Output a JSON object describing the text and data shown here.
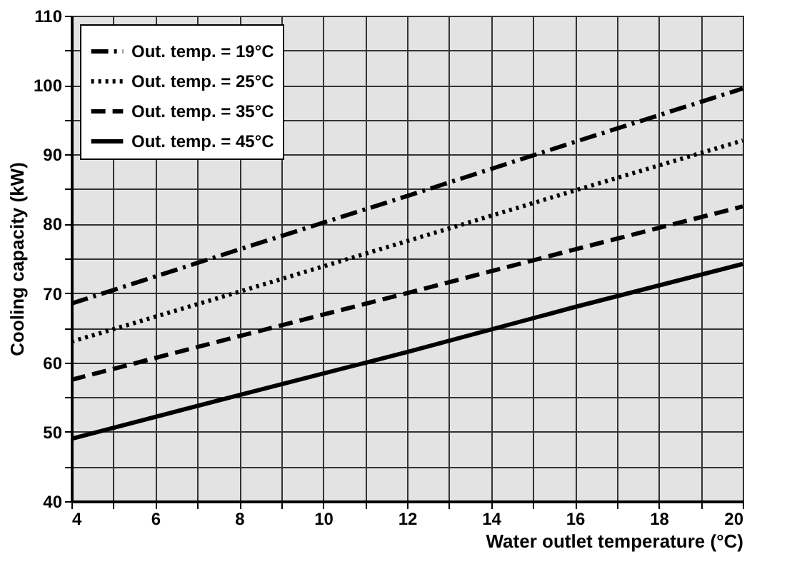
{
  "chart_data": {
    "type": "line",
    "xlabel": "Water outlet temperature (°C)",
    "ylabel": "Cooling capacity (kW)",
    "x": [
      4,
      8,
      12,
      16,
      20
    ],
    "series": [
      {
        "name": "Out. temp. = 19°C",
        "color": "#000000",
        "line_style": "dashdot",
        "values": [
          68.5,
          76.3,
          84,
          91.8,
          99.5
        ]
      },
      {
        "name": "Out. temp. = 25°C",
        "color": "#000000",
        "line_style": "dotted",
        "values": [
          63,
          70.2,
          77.5,
          84.8,
          92
        ]
      },
      {
        "name": "Out. temp. = 35°C",
        "color": "#000000",
        "line_style": "dashed",
        "values": [
          57.5,
          63.8,
          70,
          76.3,
          82.5
        ]
      },
      {
        "name": "Out. temp. = 45°C",
        "color": "#000000",
        "line_style": "solid",
        "values": [
          49,
          55.3,
          61.5,
          68,
          74.2
        ]
      }
    ],
    "xlim": [
      4,
      20
    ],
    "xticks": [
      4,
      {
        "value": 5,
        "label": null
      },
      6,
      {
        "value": 7,
        "label": null
      },
      8,
      {
        "value": 9,
        "label": null
      },
      10,
      {
        "value": 11,
        "label": null
      },
      12,
      {
        "value": 13,
        "label": null
      },
      14,
      {
        "value": 15,
        "label": null
      },
      16,
      {
        "value": 17,
        "label": null
      },
      18,
      {
        "value": 19,
        "label": null
      },
      20
    ],
    "ylim": [
      40,
      110
    ],
    "yticks": [
      40,
      {
        "value": 45,
        "label": null
      },
      50,
      {
        "value": 55,
        "label": null
      },
      60,
      {
        "value": 65,
        "label": null
      },
      70,
      {
        "value": 75,
        "label": null
      },
      80,
      {
        "value": 85,
        "label": null
      },
      90,
      {
        "value": 95,
        "label": null
      },
      100,
      {
        "value": 105,
        "label": null
      },
      110
    ],
    "grid": true,
    "legend": "top left",
    "marker": "none"
  }
}
